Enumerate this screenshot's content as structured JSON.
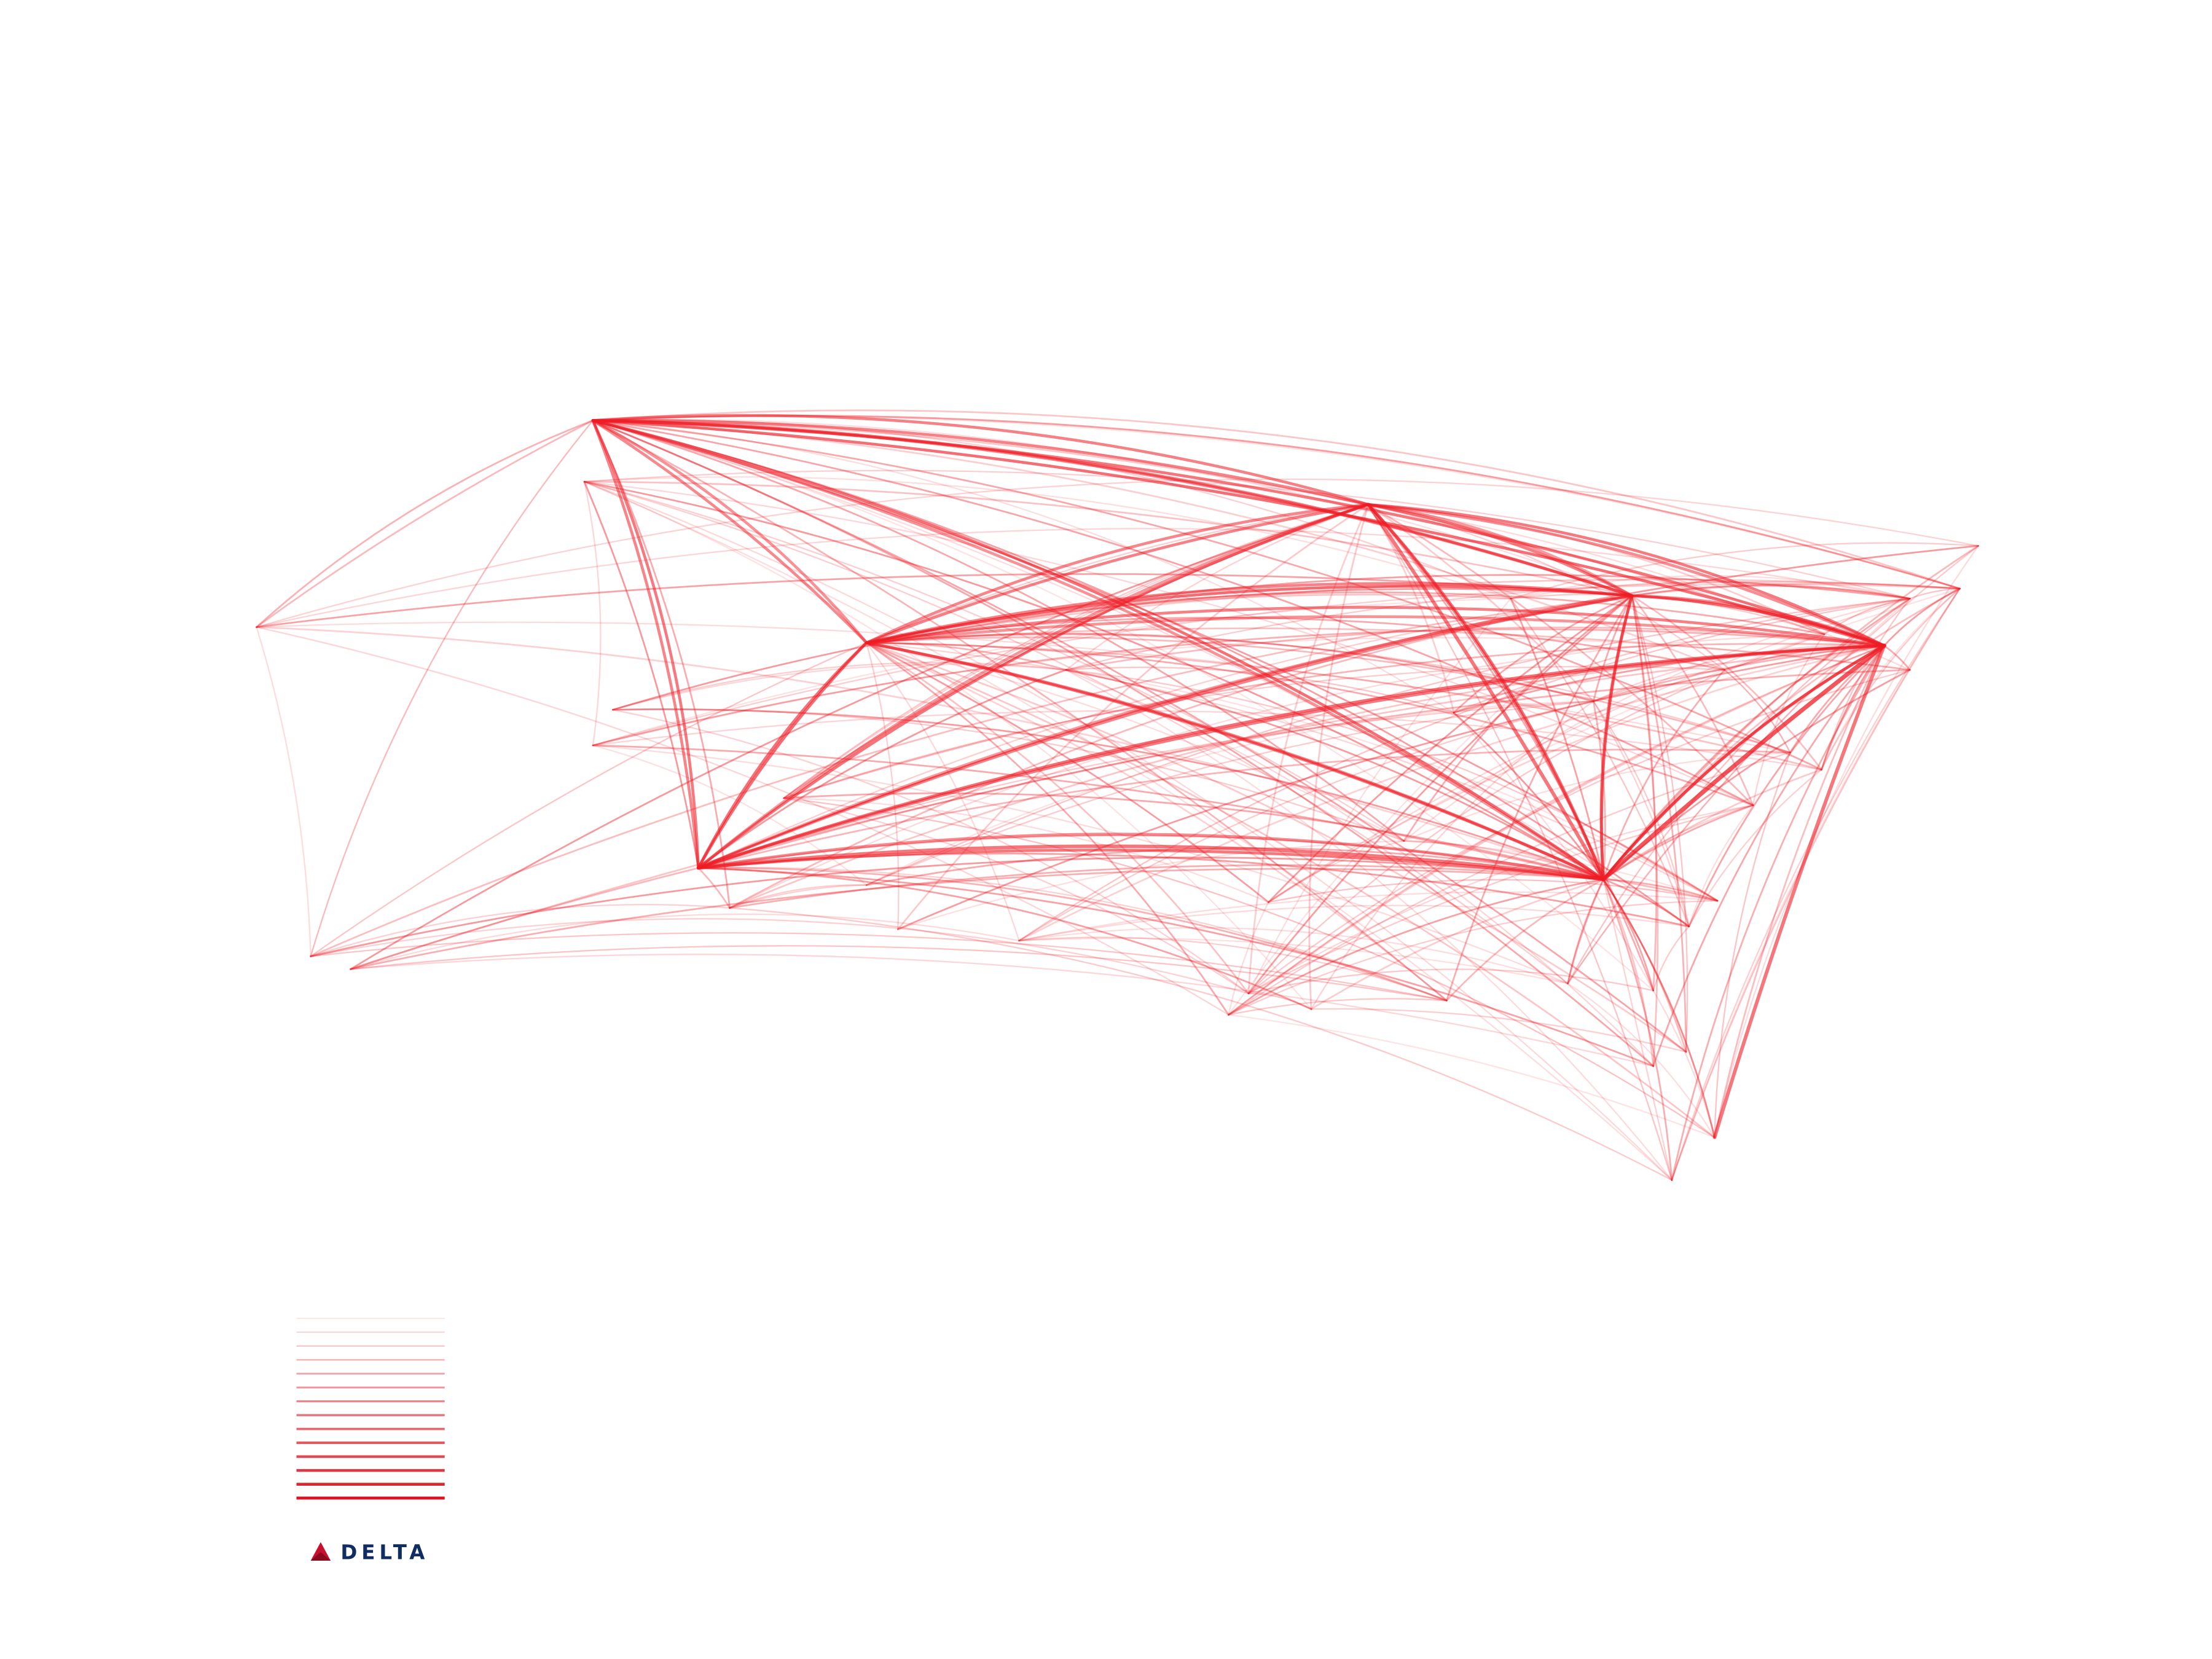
{
  "logo": {
    "text": "DELTA"
  }
}
